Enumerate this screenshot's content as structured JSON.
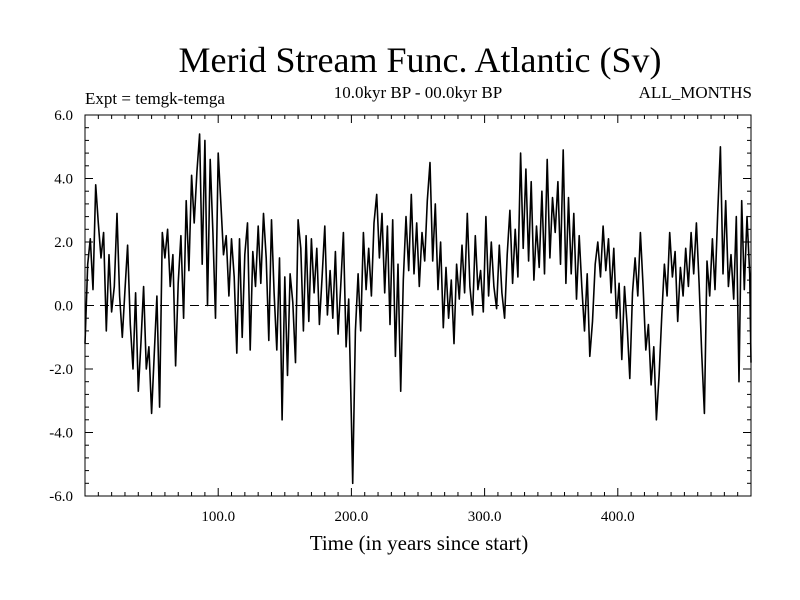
{
  "chart_data": {
    "type": "line",
    "title": "Merid Stream Func. Atlantic (Sv)",
    "subtitle_left": "Expt = temgk-temga",
    "subtitle_center": "10.0kyr BP - 00.0kyr BP",
    "subtitle_right": "ALL_MONTHS",
    "xlabel": "Time (in years since start)",
    "ylabel": "",
    "xlim": [
      0,
      500
    ],
    "ylim": [
      -6.0,
      6.0
    ],
    "xticks": [
      100.0,
      200.0,
      300.0,
      400.0
    ],
    "xtick_labels": [
      "100.0",
      "200.0",
      "300.0",
      "400.0"
    ],
    "yticks": [
      6.0,
      4.0,
      2.0,
      0.0,
      -2.0,
      -4.0,
      -6.0
    ],
    "ytick_labels": [
      "6.0",
      "4.0",
      "2.0",
      "0.0",
      "-2.0",
      "-4.0",
      "-6.0"
    ],
    "zero_line": "dashed",
    "anchors": [
      [
        0,
        -1.2
      ],
      [
        2,
        1.3
      ],
      [
        4,
        2.1
      ],
      [
        6,
        0.5
      ],
      [
        8,
        3.8
      ],
      [
        10,
        2.6
      ],
      [
        12,
        1.5
      ],
      [
        14,
        2.3
      ],
      [
        16,
        -0.8
      ],
      [
        18,
        1.6
      ],
      [
        20,
        -0.2
      ],
      [
        22,
        0.6
      ],
      [
        24,
        2.9
      ],
      [
        26,
        0.3
      ],
      [
        28,
        -1.0
      ],
      [
        30,
        0.5
      ],
      [
        32,
        1.9
      ],
      [
        34,
        -0.6
      ],
      [
        36,
        -2.0
      ],
      [
        38,
        0.4
      ],
      [
        40,
        -2.7
      ],
      [
        42,
        -1.2
      ],
      [
        44,
        0.6
      ],
      [
        46,
        -2.0
      ],
      [
        48,
        -1.3
      ],
      [
        50,
        -3.4
      ],
      [
        52,
        -1.5
      ],
      [
        54,
        0.3
      ],
      [
        56,
        -3.2
      ],
      [
        58,
        2.3
      ],
      [
        60,
        1.5
      ],
      [
        62,
        2.4
      ],
      [
        64,
        0.6
      ],
      [
        66,
        1.6
      ],
      [
        68,
        -1.9
      ],
      [
        70,
        0.7
      ],
      [
        72,
        2.2
      ],
      [
        74,
        -0.4
      ],
      [
        76,
        3.3
      ],
      [
        78,
        1.1
      ],
      [
        80,
        4.1
      ],
      [
        82,
        2.6
      ],
      [
        84,
        4.2
      ],
      [
        86,
        5.4
      ],
      [
        88,
        1.3
      ],
      [
        90,
        5.2
      ],
      [
        92,
        0.0
      ],
      [
        94,
        4.6
      ],
      [
        96,
        2.3
      ],
      [
        98,
        -0.4
      ],
      [
        100,
        4.8
      ],
      [
        102,
        3.2
      ],
      [
        104,
        1.6
      ],
      [
        106,
        2.2
      ],
      [
        108,
        0.3
      ],
      [
        110,
        2.1
      ],
      [
        112,
        0.9
      ],
      [
        114,
        -1.5
      ],
      [
        116,
        2.1
      ],
      [
        118,
        -1.0
      ],
      [
        120,
        1.6
      ],
      [
        122,
        2.6
      ],
      [
        124,
        -1.4
      ],
      [
        126,
        1.7
      ],
      [
        128,
        0.6
      ],
      [
        130,
        2.5
      ],
      [
        132,
        0.7
      ],
      [
        134,
        2.9
      ],
      [
        136,
        1.5
      ],
      [
        138,
        -1.1
      ],
      [
        140,
        2.7
      ],
      [
        142,
        0.4
      ],
      [
        144,
        -1.4
      ],
      [
        146,
        1.5
      ],
      [
        148,
        -3.6
      ],
      [
        150,
        0.9
      ],
      [
        152,
        -2.2
      ],
      [
        154,
        1.0
      ],
      [
        156,
        0.1
      ],
      [
        158,
        -1.8
      ],
      [
        160,
        2.7
      ],
      [
        162,
        1.8
      ],
      [
        164,
        -0.8
      ],
      [
        166,
        2.2
      ],
      [
        168,
        -0.5
      ],
      [
        170,
        2.1
      ],
      [
        172,
        0.4
      ],
      [
        174,
        1.8
      ],
      [
        176,
        -0.6
      ],
      [
        178,
        0.9
      ],
      [
        180,
        2.5
      ],
      [
        182,
        -0.3
      ],
      [
        184,
        1.1
      ],
      [
        186,
        -0.4
      ],
      [
        188,
        1.7
      ],
      [
        190,
        -0.9
      ],
      [
        192,
        0.6
      ],
      [
        194,
        2.3
      ],
      [
        196,
        -1.3
      ],
      [
        198,
        0.2
      ],
      [
        200,
        -3.6
      ],
      [
        201,
        -5.6
      ],
      [
        203,
        -0.8
      ],
      [
        205,
        1.0
      ],
      [
        207,
        -0.8
      ],
      [
        209,
        2.3
      ],
      [
        211,
        0.5
      ],
      [
        213,
        1.8
      ],
      [
        215,
        0.3
      ],
      [
        217,
        2.6
      ],
      [
        219,
        3.5
      ],
      [
        221,
        1.5
      ],
      [
        223,
        2.9
      ],
      [
        225,
        0.4
      ],
      [
        227,
        2.5
      ],
      [
        229,
        -0.6
      ],
      [
        231,
        2.7
      ],
      [
        233,
        -1.6
      ],
      [
        235,
        1.3
      ],
      [
        237,
        -2.7
      ],
      [
        239,
        0.8
      ],
      [
        241,
        2.8
      ],
      [
        243,
        1.1
      ],
      [
        245,
        3.5
      ],
      [
        247,
        1.0
      ],
      [
        249,
        2.6
      ],
      [
        251,
        0.6
      ],
      [
        253,
        2.3
      ],
      [
        255,
        1.4
      ],
      [
        257,
        3.3
      ],
      [
        259,
        4.5
      ],
      [
        261,
        1.4
      ],
      [
        263,
        3.2
      ],
      [
        265,
        0.5
      ],
      [
        267,
        2.0
      ],
      [
        269,
        -0.7
      ],
      [
        271,
        1.2
      ],
      [
        273,
        -0.4
      ],
      [
        275,
        0.8
      ],
      [
        277,
        -1.2
      ],
      [
        279,
        1.3
      ],
      [
        281,
        0.2
      ],
      [
        283,
        1.9
      ],
      [
        285,
        0.4
      ],
      [
        287,
        2.9
      ],
      [
        289,
        0.6
      ],
      [
        291,
        -0.3
      ],
      [
        293,
        2.2
      ],
      [
        295,
        0.5
      ],
      [
        297,
        1.1
      ],
      [
        299,
        -0.2
      ],
      [
        301,
        2.8
      ],
      [
        303,
        0.3
      ],
      [
        305,
        2.0
      ],
      [
        307,
        0.6
      ],
      [
        309,
        -0.1
      ],
      [
        311,
        1.9
      ],
      [
        313,
        0.4
      ],
      [
        315,
        -0.4
      ],
      [
        317,
        1.6
      ],
      [
        319,
        3.0
      ],
      [
        321,
        0.7
      ],
      [
        323,
        2.4
      ],
      [
        325,
        0.9
      ],
      [
        327,
        4.8
      ],
      [
        329,
        1.8
      ],
      [
        331,
        4.3
      ],
      [
        333,
        1.4
      ],
      [
        335,
        3.9
      ],
      [
        337,
        0.8
      ],
      [
        339,
        2.5
      ],
      [
        341,
        1.2
      ],
      [
        343,
        3.6
      ],
      [
        345,
        1.0
      ],
      [
        347,
        4.6
      ],
      [
        349,
        1.5
      ],
      [
        351,
        3.4
      ],
      [
        353,
        2.3
      ],
      [
        355,
        3.9
      ],
      [
        357,
        1.3
      ],
      [
        359,
        4.9
      ],
      [
        361,
        0.7
      ],
      [
        363,
        3.4
      ],
      [
        365,
        1.0
      ],
      [
        367,
        2.9
      ],
      [
        369,
        0.2
      ],
      [
        371,
        2.2
      ],
      [
        373,
        0.6
      ],
      [
        375,
        -0.8
      ],
      [
        377,
        1.0
      ],
      [
        379,
        -1.6
      ],
      [
        381,
        -0.5
      ],
      [
        383,
        1.3
      ],
      [
        385,
        2.0
      ],
      [
        387,
        0.9
      ],
      [
        389,
        2.5
      ],
      [
        391,
        1.1
      ],
      [
        393,
        2.1
      ],
      [
        395,
        0.4
      ],
      [
        397,
        1.8
      ],
      [
        399,
        -0.4
      ],
      [
        401,
        0.7
      ],
      [
        403,
        -1.7
      ],
      [
        405,
        0.6
      ],
      [
        407,
        -0.6
      ],
      [
        409,
        -2.3
      ],
      [
        411,
        0.4
      ],
      [
        413,
        1.5
      ],
      [
        415,
        0.3
      ],
      [
        417,
        2.3
      ],
      [
        419,
        0.6
      ],
      [
        421,
        -1.4
      ],
      [
        423,
        -0.6
      ],
      [
        425,
        -2.5
      ],
      [
        427,
        -1.3
      ],
      [
        429,
        -3.6
      ],
      [
        431,
        -2.2
      ],
      [
        433,
        -0.3
      ],
      [
        435,
        1.3
      ],
      [
        437,
        0.3
      ],
      [
        439,
        2.3
      ],
      [
        441,
        0.9
      ],
      [
        443,
        1.7
      ],
      [
        445,
        -0.5
      ],
      [
        447,
        1.2
      ],
      [
        449,
        0.3
      ],
      [
        451,
        1.8
      ],
      [
        453,
        0.6
      ],
      [
        455,
        2.3
      ],
      [
        457,
        1.0
      ],
      [
        459,
        2.6
      ],
      [
        461,
        0.7
      ],
      [
        463,
        -1.5
      ],
      [
        465,
        -3.4
      ],
      [
        467,
        1.4
      ],
      [
        469,
        0.3
      ],
      [
        471,
        2.1
      ],
      [
        473,
        0.5
      ],
      [
        475,
        2.9
      ],
      [
        477,
        5.0
      ],
      [
        479,
        1.0
      ],
      [
        481,
        3.3
      ],
      [
        483,
        0.6
      ],
      [
        485,
        1.6
      ],
      [
        487,
        0.2
      ],
      [
        489,
        2.8
      ],
      [
        491,
        -2.4
      ],
      [
        493,
        3.3
      ],
      [
        495,
        0.5
      ],
      [
        497,
        2.8
      ],
      [
        499,
        1.0
      ],
      [
        500,
        -1.8
      ]
    ]
  }
}
